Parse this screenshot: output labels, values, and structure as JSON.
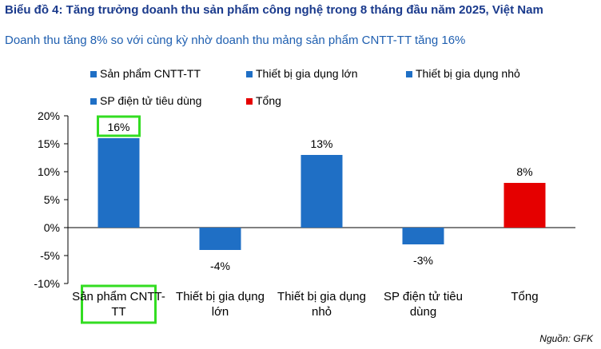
{
  "chart_data": {
    "type": "bar",
    "title": "Biểu đồ 4: Tăng trưởng doanh thu sản phẩm công nghệ trong 8 tháng đầu năm 2025, Việt Nam",
    "subtitle": "Doanh thu tăng 8% so với cùng kỳ nhờ doanh thu mảng sản phẩm CNTT-TT tăng 16%",
    "categories": [
      "Sản phẩm CNTT-TT",
      "Thiết bị gia dụng lớn",
      "Thiết bị gia dụng nhỏ",
      "SP điện tử tiêu dùng",
      "Tổng"
    ],
    "values": [
      16,
      -4,
      13,
      -3,
      8
    ],
    "value_labels": [
      "16%",
      "-4%",
      "13%",
      "-3%",
      "8%"
    ],
    "colors": [
      "#1f6fc5",
      "#1f6fc5",
      "#1f6fc5",
      "#1f6fc5",
      "#e50000"
    ],
    "ylim": [
      -10,
      20
    ],
    "yticks": [
      {
        "value": -10,
        "label": "-10%"
      },
      {
        "value": -5,
        "label": "-5%"
      },
      {
        "value": 0,
        "label": "0%"
      },
      {
        "value": 5,
        "label": "5%"
      },
      {
        "value": 10,
        "label": "10%"
      },
      {
        "value": 15,
        "label": "15%"
      },
      {
        "value": 20,
        "label": "20%"
      }
    ],
    "source": "Nguồn: GFK"
  }
}
